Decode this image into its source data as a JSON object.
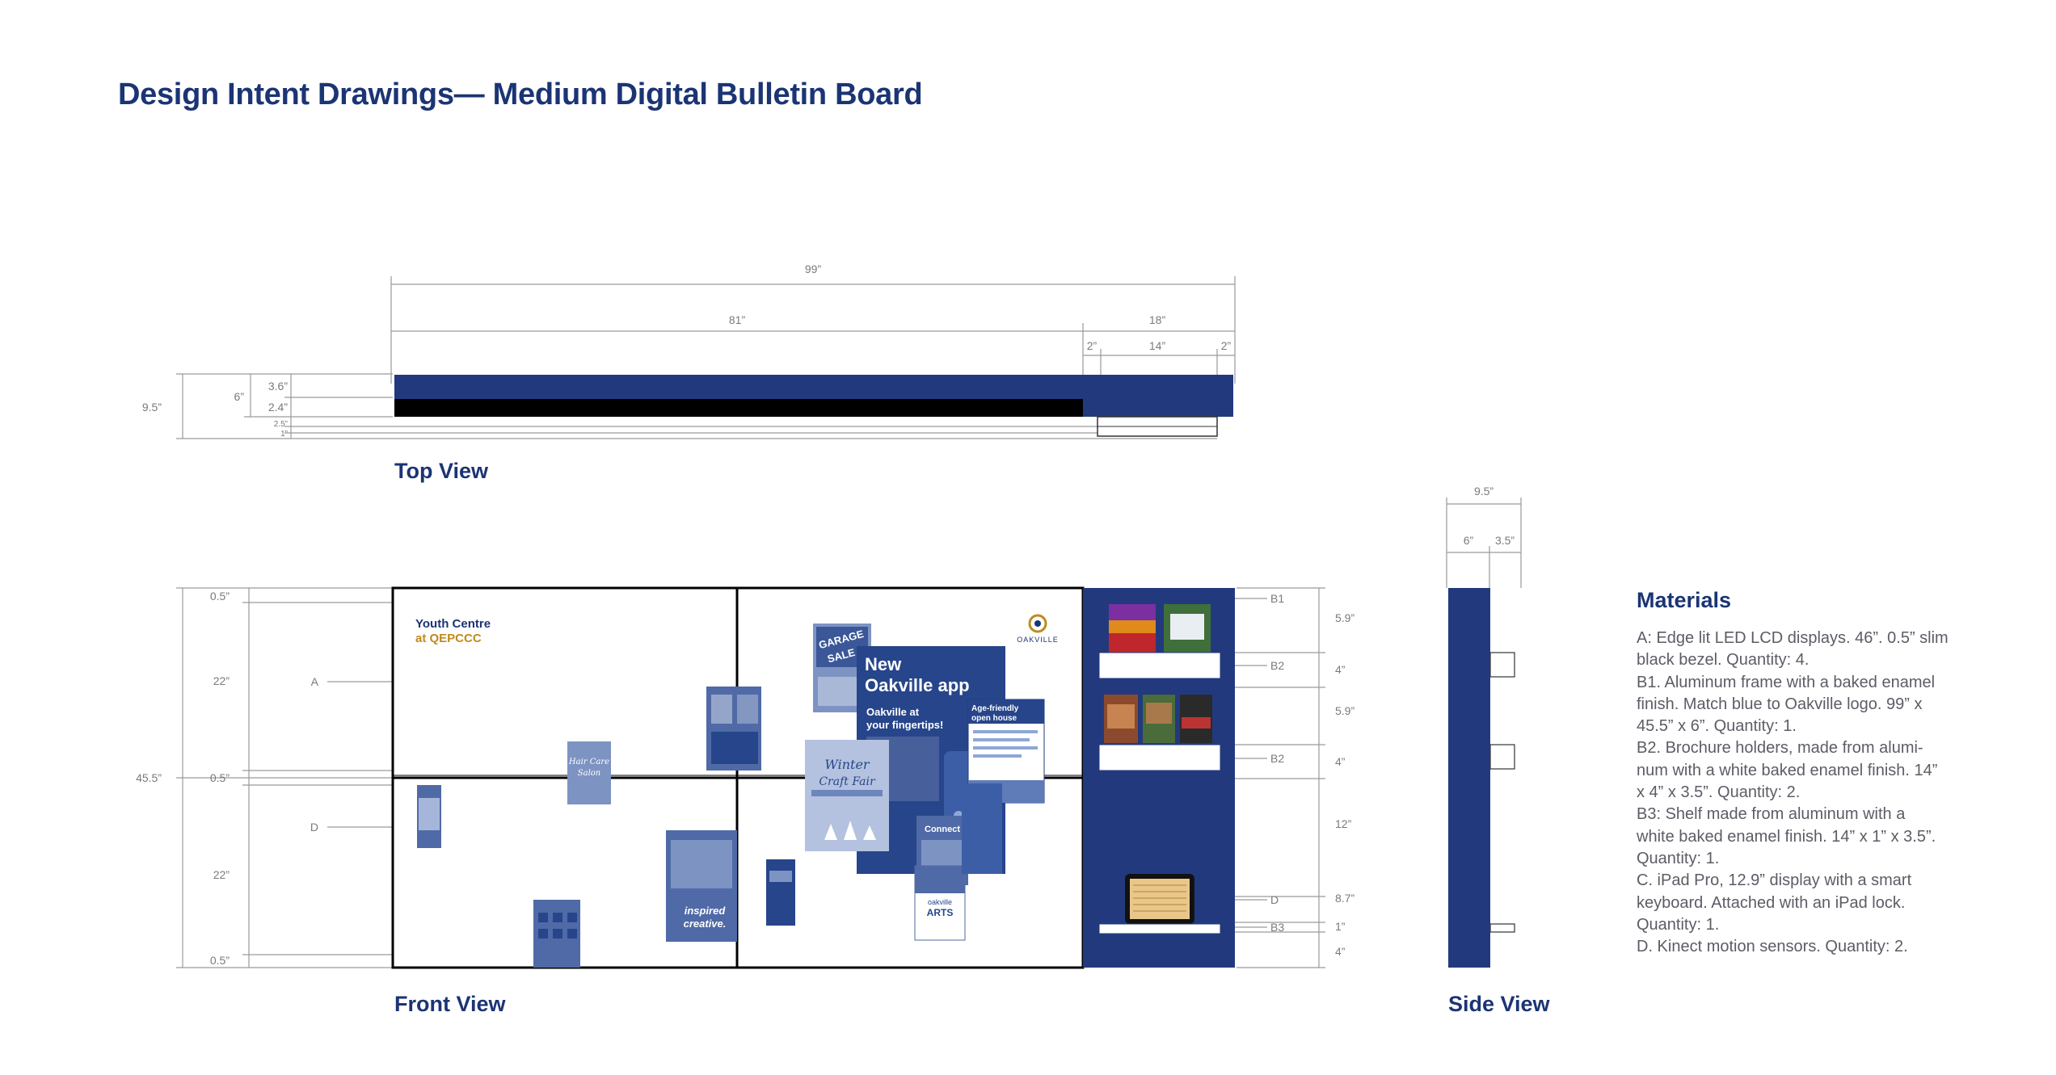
{
  "title": "Design Intent Drawings— Medium Digital Bulletin Board",
  "views": {
    "top": "Top View",
    "front": "Front View",
    "side": "Side View"
  },
  "colors": {
    "brand_blue": "#223a7d",
    "bezel_black": "#000000",
    "poster_blue": "#4f6aa6",
    "dimension_gray": "#8a8a8a"
  },
  "top_view": {
    "overall": "99”",
    "display_width": "81”",
    "right_section": "18”",
    "right_margin_left": "2”",
    "holder_width": "14”",
    "right_margin_right": "2”",
    "depth_total": "9.5”",
    "depth_frame": "6”",
    "depth_upper": "3.6”",
    "depth_lower": "2.4”",
    "depth_holder": "2.5”",
    "depth_shelf": "1”"
  },
  "front_view": {
    "height_total": "45.5”",
    "left_dims": [
      "0.5”",
      "22”",
      "0.5”",
      "22”",
      "0.5”"
    ],
    "label_a": "A",
    "label_d": "D",
    "right_dims": [
      "5.9”",
      "4”",
      "5.9”",
      "4”",
      "12”",
      "8.7”",
      "1”",
      "4”"
    ],
    "right_labels": [
      "B1",
      "B2",
      "B2",
      "D",
      "B3"
    ],
    "screen_brand_line1": "Youth Centre",
    "screen_brand_line2": "at QEPCCC",
    "town_logo_text": "OAKVILLE",
    "posters": {
      "new_app_line1": "New",
      "new_app_line2": "Oakville app",
      "new_app_sub1": "Oakville at",
      "new_app_sub2": "your fingertips!",
      "age_friendly1": "Age-friendly",
      "age_friendly2": "open house",
      "garage_sale1": "GARAGE",
      "garage_sale2": "SALE",
      "winter_craft1": "Winter",
      "winter_craft2": "Craft Fair",
      "hair_care1": "Hair Care",
      "hair_care2": "Salon",
      "inspired1": "inspired",
      "inspired2": "creative.",
      "connect": "Connect",
      "oakville_arts1": "oakville",
      "oakville_arts2": "ARTS"
    }
  },
  "side_view": {
    "depth_total": "9.5”",
    "depth_frame": "6”",
    "depth_holder": "3.5”"
  },
  "materials": {
    "heading": "Materials",
    "lines": [
      "A: Edge lit LED LCD displays. 46”. 0.5” slim",
      "black bezel. Quantity: 4.",
      "B1. Aluminum frame with a baked enamel",
      "finish. Match blue to Oakville logo. 99” x",
      "45.5” x 6”. Quantity: 1.",
      "B2. Brochure holders, made from alumi-",
      "num with a white baked enamel finish. 14”",
      "x 4” x 3.5”. Quantity: 2.",
      "B3: Shelf made from aluminum with a",
      "white baked enamel finish. 14” x 1” x 3.5”.",
      "Quantity: 1.",
      "C. iPad Pro, 12.9” display with a smart",
      "keyboard. Attached with an iPad lock.",
      "Quantity: 1.",
      "D. Kinect motion sensors. Quantity: 2."
    ]
  }
}
